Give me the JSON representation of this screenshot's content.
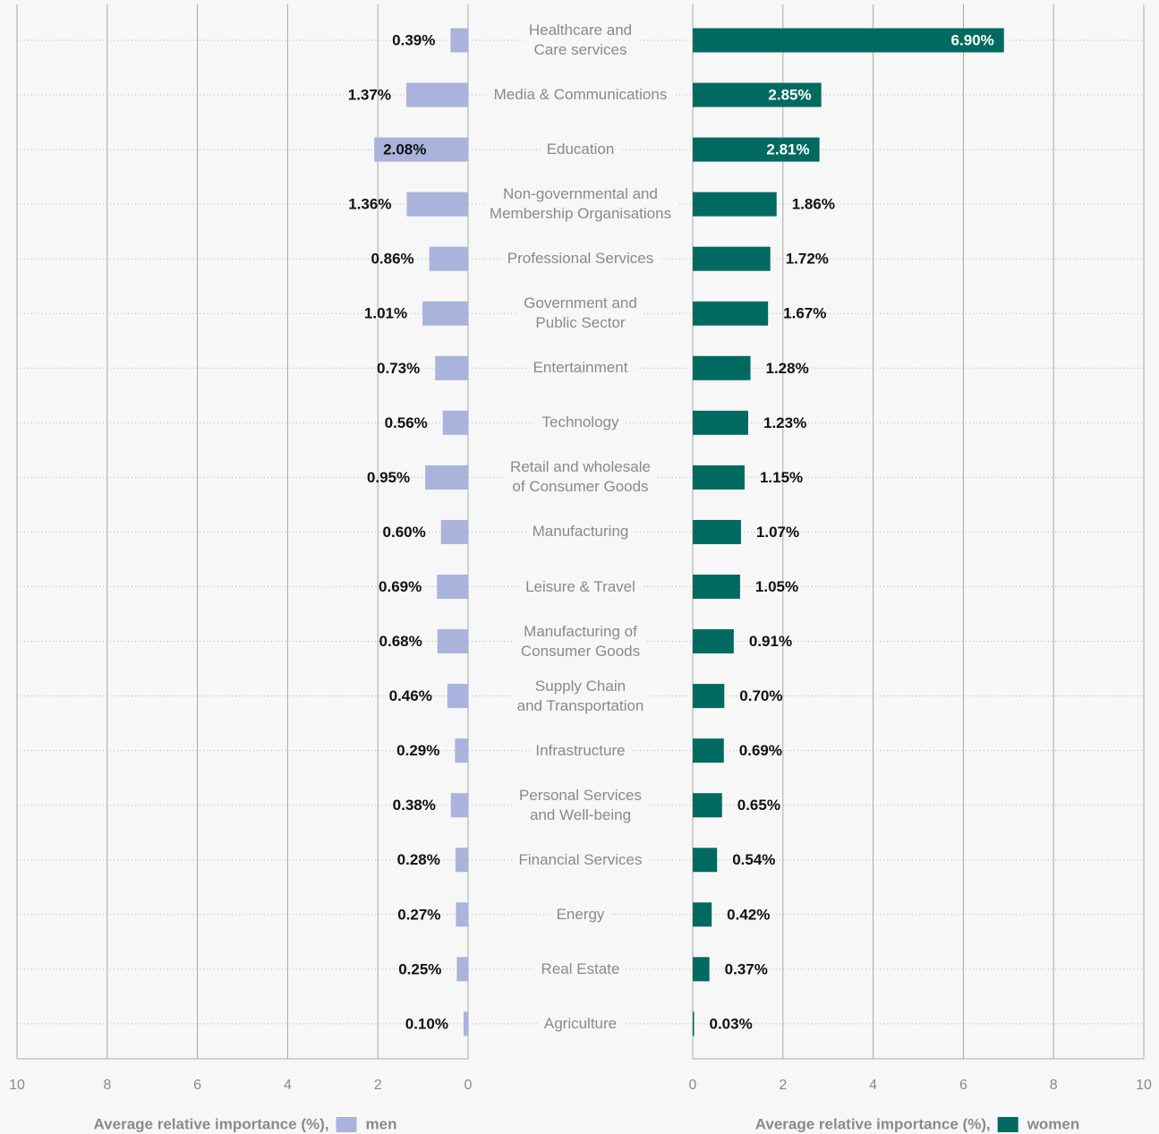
{
  "chart_data": {
    "type": "bar",
    "categories": [
      "Healthcare and\nCare services",
      "Media & Communications",
      "Education",
      "Non-governmental and\nMembership Organisations",
      "Professional Services",
      "Government and\nPublic Sector",
      "Entertainment",
      "Technology",
      "Retail and wholesale\nof Consumer Goods",
      "Manufacturing",
      "Leisure & Travel",
      "Manufacturing of\nConsumer Goods",
      "Supply Chain\nand Transportation",
      "Infrastructure",
      "Personal Services\nand Well-being",
      "Financial Services",
      "Energy",
      "Real Estate",
      "Agriculture"
    ],
    "series": [
      {
        "name": "men",
        "color": "#a9b3db",
        "values": [
          0.39,
          1.37,
          2.08,
          1.36,
          0.86,
          1.01,
          0.73,
          0.56,
          0.95,
          0.6,
          0.69,
          0.68,
          0.46,
          0.29,
          0.38,
          0.28,
          0.27,
          0.25,
          0.1
        ],
        "value_labels": [
          "0.39%",
          "1.37%",
          "2.08%",
          "1.36%",
          "0.86%",
          "1.01%",
          "0.73%",
          "0.56%",
          "0.95%",
          "0.60%",
          "0.69%",
          "0.68%",
          "0.46%",
          "0.29%",
          "0.38%",
          "0.28%",
          "0.27%",
          "0.25%",
          "0.10%"
        ]
      },
      {
        "name": "women",
        "color": "#006a60",
        "values": [
          6.9,
          2.85,
          2.81,
          1.86,
          1.72,
          1.67,
          1.28,
          1.23,
          1.15,
          1.07,
          1.05,
          0.91,
          0.7,
          0.69,
          0.65,
          0.54,
          0.42,
          0.37,
          0.03
        ],
        "value_labels": [
          "6.90%",
          "2.85%",
          "2.81%",
          "1.86%",
          "1.72%",
          "1.67%",
          "1.28%",
          "1.23%",
          "1.15%",
          "1.07%",
          "1.05%",
          "0.91%",
          "0.70%",
          "0.69%",
          "0.65%",
          "0.54%",
          "0.42%",
          "0.37%",
          "0.03%"
        ]
      }
    ],
    "x_label": "Average relative importance (%),",
    "xlim": [
      0,
      10
    ],
    "xticks": [
      0,
      2,
      4,
      6,
      8,
      10
    ],
    "grid": true
  }
}
